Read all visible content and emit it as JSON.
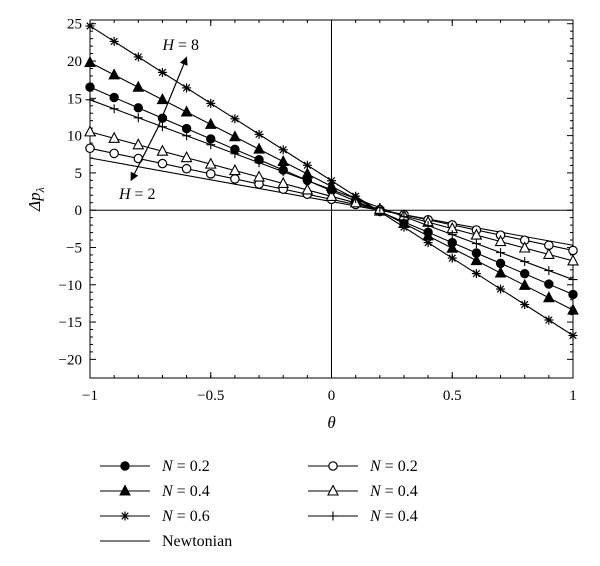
{
  "chart_data": {
    "type": "line",
    "xlabel": "θ",
    "ylabel": "Δp",
    "ylabel_sub": "λ",
    "xlim": [
      -1,
      1
    ],
    "ylim": [
      -22.5,
      25.5
    ],
    "xticks": [
      -1,
      -0.5,
      0,
      0.5,
      1
    ],
    "xtick_labels": [
      "−1",
      "−0.5",
      "0",
      "0.5",
      "1"
    ],
    "yticks": [
      25,
      20,
      15,
      10,
      5,
      0,
      -5,
      -10,
      -15,
      -20
    ],
    "ytick_labels": [
      "25",
      "20",
      "15",
      "10",
      "5",
      "0",
      "−5",
      "−10",
      "−15",
      "−20"
    ],
    "grid": false,
    "legend_position": "bottom",
    "annotations": [
      {
        "text_var": "H",
        "text_rest": " = 8",
        "x": -0.7,
        "y": 21.5
      },
      {
        "text_var": "H",
        "text_rest": " = 2",
        "x": -0.88,
        "y": 1.5
      }
    ],
    "arrow": {
      "from": [
        -0.72,
        11
      ],
      "to": [
        -0.6,
        20.5
      ],
      "from2": [
        -0.72,
        11
      ],
      "to2": [
        -0.83,
        4
      ]
    },
    "series": [
      {
        "name_var": "N",
        "name_rest": " = 0.2",
        "marker": "filled-circle",
        "x": [
          -1,
          1
        ],
        "y": [
          16.5,
          -11.3
        ]
      },
      {
        "name_var": "N",
        "name_rest": " = 0.4",
        "marker": "filled-triangle",
        "x": [
          -1,
          1
        ],
        "y": [
          19.8,
          -13.4
        ]
      },
      {
        "name_var": "N",
        "name_rest": " = 0.6",
        "marker": "star",
        "x": [
          -1,
          1
        ],
        "y": [
          24.7,
          -16.8
        ]
      },
      {
        "name": "Newtonian",
        "marker": "none",
        "x": [
          -1,
          1
        ],
        "y": [
          7.0,
          -4.7
        ]
      },
      {
        "name_var": "N",
        "name_rest": " = 0.2",
        "marker": "open-circle",
        "x": [
          -1,
          1
        ],
        "y": [
          8.3,
          -5.4
        ]
      },
      {
        "name_var": "N",
        "name_rest": " = 0.4",
        "marker": "open-triangle",
        "x": [
          -1,
          1
        ],
        "y": [
          10.5,
          -6.8
        ]
      },
      {
        "name_var": "N",
        "name_rest": " = 0.4",
        "marker": "plus",
        "x": [
          -1,
          1
        ],
        "y": [
          14.8,
          -9.3
        ]
      }
    ],
    "legend_columns": [
      [
        0,
        1,
        2,
        3
      ],
      [
        4,
        5,
        6
      ]
    ]
  }
}
